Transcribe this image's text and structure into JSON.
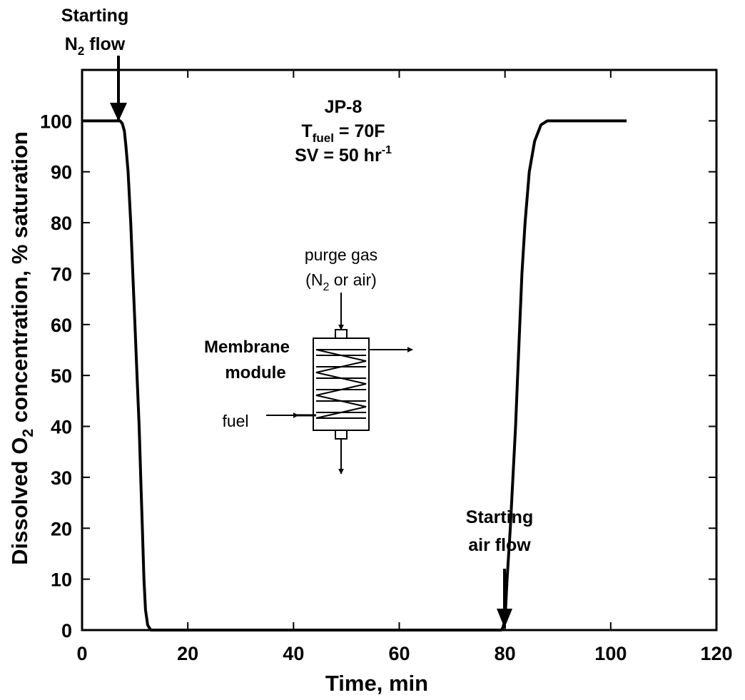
{
  "chart_data": {
    "type": "line",
    "xlabel": "Time, min",
    "ylabel_parts": {
      "a": "Dissolved O",
      "sub": "2",
      "b": " concentration, % saturation"
    },
    "xlim": [
      0,
      120
    ],
    "ylim": [
      0,
      110
    ],
    "x_ticks": [
      0,
      20,
      40,
      60,
      80,
      100,
      120
    ],
    "y_ticks": [
      0,
      10,
      20,
      30,
      40,
      50,
      60,
      70,
      80,
      90,
      100
    ],
    "x_tick_labels": [
      "0",
      "20",
      "40",
      "60",
      "80",
      "100",
      "120"
    ],
    "y_tick_labels": [
      "0",
      "10",
      "20",
      "30",
      "40",
      "50",
      "60",
      "70",
      "80",
      "90",
      "100"
    ],
    "grid": false,
    "legend": "none",
    "line_color": "#000000",
    "series": [
      {
        "points": [
          [
            0,
            100
          ],
          [
            7.2,
            100
          ],
          [
            7.6,
            99.5
          ],
          [
            8.0,
            98
          ],
          [
            8.3,
            95
          ],
          [
            8.7,
            90
          ],
          [
            9.2,
            80
          ],
          [
            9.6,
            70
          ],
          [
            10.0,
            60
          ],
          [
            10.4,
            50
          ],
          [
            10.8,
            40
          ],
          [
            11.1,
            30
          ],
          [
            11.4,
            20
          ],
          [
            11.7,
            10
          ],
          [
            12.0,
            4
          ],
          [
            12.4,
            1
          ],
          [
            13.0,
            0
          ],
          [
            79.3,
            0
          ],
          [
            79.6,
            0.5
          ],
          [
            80.0,
            2
          ],
          [
            80.4,
            10
          ],
          [
            81.0,
            20
          ],
          [
            81.5,
            30
          ],
          [
            82.0,
            40
          ],
          [
            82.4,
            50
          ],
          [
            82.8,
            60
          ],
          [
            83.2,
            70
          ],
          [
            83.8,
            80
          ],
          [
            84.6,
            90
          ],
          [
            85.6,
            96
          ],
          [
            86.8,
            99.2
          ],
          [
            88.0,
            100
          ],
          [
            103,
            100
          ]
        ]
      }
    ]
  },
  "annotations": {
    "n2_start": {
      "line1": "Starting",
      "line2_a": "N",
      "line2_sub": "2",
      "line2_b": " flow"
    },
    "air_start": {
      "line1": "Starting",
      "line2": "air flow"
    },
    "conditions": {
      "fuel": "JP-8",
      "temp_a": "T",
      "temp_sub": "fuel",
      "temp_b": " = 70F",
      "sv_a": "SV = 50 hr",
      "sv_sup": "-1"
    }
  },
  "inset": {
    "purge_line1": "purge gas",
    "purge_line2_a": "(N",
    "purge_line2_sub": "2",
    "purge_line2_b": " or air)",
    "module_line1": "Membrane",
    "module_line2": "module",
    "fuel_label": "fuel"
  }
}
